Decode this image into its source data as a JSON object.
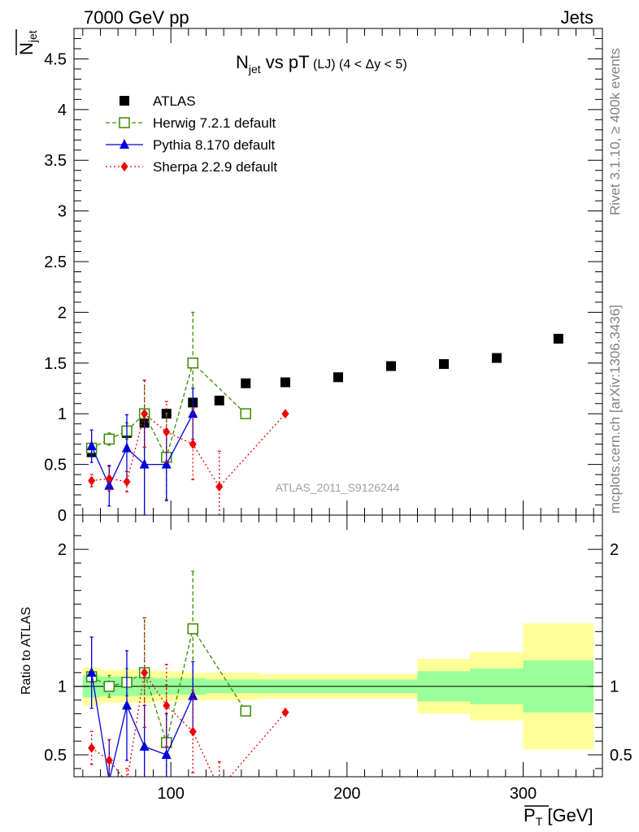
{
  "header": {
    "left": "7000 GeV pp",
    "right": "Jets",
    "watermark": "ATLAS_2011_S9126244",
    "side_top": "Rivet 3.1.10, ≥ 400k events",
    "side_bottom": "mcplots.cern.ch [arXiv:1306.3436]"
  },
  "chart_data": [
    {
      "type": "scatter",
      "title_main": "N",
      "title_sub": "jet",
      "title_rest": " vs pT",
      "title_small": " (LJ) (4 < Δy < 5)",
      "ylabel_main": "N",
      "ylabel_sub": "jet",
      "xlabel_main": "P",
      "xlabel_sub": "T",
      "xlabel_rest": " [GeV]",
      "xlim": [
        45,
        345
      ],
      "ylim": [
        0,
        4.8
      ],
      "xticks": [
        100,
        200,
        300
      ],
      "yticks": [
        0,
        0.5,
        1,
        1.5,
        2,
        2.5,
        3,
        3.5,
        4,
        4.5
      ],
      "ytick_labels": [
        "0",
        "0.5",
        "1",
        "1.5",
        "2",
        "2.5",
        "3",
        "3.5",
        "4",
        "4.5"
      ],
      "legend_position": "top-left",
      "series": [
        {
          "name": "ATLAS",
          "color": "#000000",
          "marker": "square",
          "x": [
            55,
            65,
            75,
            85,
            97.5,
            112.5,
            127.5,
            142.5,
            165,
            195,
            225,
            255,
            285,
            320
          ],
          "y": [
            0.62,
            0.75,
            0.81,
            0.91,
            1.0,
            1.11,
            1.13,
            1.3,
            1.31,
            1.36,
            1.47,
            1.49,
            1.55,
            1.74
          ]
        },
        {
          "name": "Herwig 7.2.1 default",
          "color": "#3a8a00",
          "marker": "open-square",
          "x": [
            55,
            65,
            75,
            85,
            97.5,
            112.5,
            142.5
          ],
          "y": [
            0.66,
            0.75,
            0.83,
            1.0,
            0.57,
            1.5,
            1.0
          ],
          "err_low": [
            0.03,
            0.06,
            0.08,
            0.33,
            0.43,
            0.5,
            0.0
          ],
          "err_high": [
            0.03,
            0.06,
            0.08,
            0.33,
            0.43,
            0.5,
            0.0
          ]
        },
        {
          "name": "Pythia 8.170 default",
          "color": "#0000dd",
          "marker": "triangle",
          "x": [
            55,
            65,
            75,
            85,
            97.5,
            112.5
          ],
          "y": [
            0.68,
            0.29,
            0.66,
            0.5,
            0.5,
            1.0
          ],
          "err_low": [
            0.16,
            0.2,
            0.33,
            0.5,
            0.35,
            0.25
          ],
          "err_high": [
            0.16,
            0.2,
            0.33,
            0.5,
            0.35,
            0.25
          ]
        },
        {
          "name": "Sherpa 2.2.9 default",
          "color": "#ee0000",
          "marker": "diamond",
          "x": [
            55,
            65,
            75,
            85,
            97.5,
            112.5,
            127.5,
            165
          ],
          "y": [
            0.34,
            0.36,
            0.33,
            1.0,
            0.82,
            0.7,
            0.28,
            1.0
          ],
          "err_low": [
            0.06,
            0.12,
            0.1,
            0.33,
            0.3,
            0.35,
            0.28,
            0.0
          ],
          "err_high": [
            0.06,
            0.12,
            0.1,
            0.33,
            0.3,
            0.35,
            0.35,
            0.0
          ]
        }
      ]
    },
    {
      "type": "scatter",
      "ylabel": "Ratio to ATLAS",
      "xlim": [
        45,
        345
      ],
      "ylim": [
        0.34,
        2.25
      ],
      "yticks": [
        0.5,
        1,
        2
      ],
      "ytick_labels": [
        "0.5",
        "1",
        "2"
      ],
      "xticks": [
        100,
        200,
        300
      ],
      "xtick_labels": [
        "100",
        "200",
        "300"
      ],
      "bands": {
        "inner_color": "#99ff99",
        "outer_color": "#ffff99",
        "x_edges": [
          50,
          60,
          70,
          80,
          90,
          105,
          120,
          135,
          150,
          180,
          210,
          240,
          270,
          300,
          340
        ],
        "inner": [
          0.08,
          0.07,
          0.07,
          0.07,
          0.06,
          0.06,
          0.05,
          0.05,
          0.05,
          0.05,
          0.05,
          0.11,
          0.13,
          0.19
        ],
        "outer": [
          0.14,
          0.12,
          0.12,
          0.12,
          0.11,
          0.1,
          0.1,
          0.1,
          0.09,
          0.09,
          0.09,
          0.2,
          0.25,
          0.46
        ]
      },
      "series": [
        {
          "name": "Herwig 7.2.1 default",
          "color": "#3a8a00",
          "marker": "open-square",
          "x": [
            55,
            65,
            75,
            85,
            97.5,
            112.5,
            142.5
          ],
          "y": [
            1.07,
            1.0,
            1.03,
            1.1,
            0.59,
            1.42,
            0.82
          ],
          "err_low": [
            0.04,
            0.08,
            0.1,
            0.4,
            0.42,
            0.42,
            0.0
          ],
          "err_high": [
            0.04,
            0.08,
            0.1,
            0.4,
            0.42,
            0.42,
            0.0
          ]
        },
        {
          "name": "Pythia 8.170 default",
          "color": "#0000dd",
          "marker": "triangle",
          "x": [
            55,
            65,
            75,
            85,
            97.5,
            112.5
          ],
          "y": [
            1.1,
            0.31,
            0.86,
            0.56,
            0.5,
            0.93
          ],
          "err_low": [
            0.26,
            0.3,
            0.4,
            0.3,
            0.3,
            0.25
          ],
          "err_high": [
            0.26,
            0.3,
            0.4,
            0.3,
            0.3,
            0.25
          ]
        },
        {
          "name": "Sherpa 2.2.9 default",
          "color": "#ee0000",
          "marker": "diamond",
          "x": [
            55,
            65,
            75,
            85,
            97.5,
            112.5,
            127.5,
            165
          ],
          "y": [
            0.55,
            0.46,
            0.3,
            1.1,
            0.86,
            0.67,
            0.25,
            0.81
          ],
          "err_low": [
            0.12,
            0.15,
            0.1,
            0.4,
            0.3,
            0.3,
            0.2,
            0.0
          ],
          "err_high": [
            0.12,
            0.15,
            0.1,
            0.4,
            0.3,
            0.3,
            0.2,
            0.0
          ]
        }
      ]
    }
  ]
}
